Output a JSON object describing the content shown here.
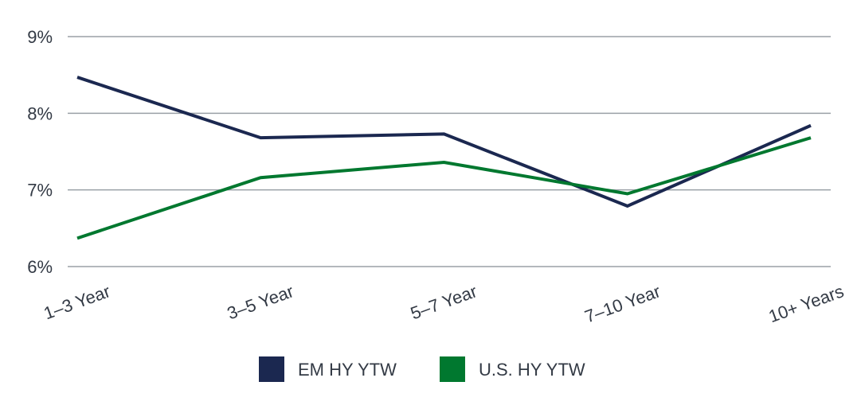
{
  "chart_data": {
    "type": "line",
    "categories": [
      "1–3 Year",
      "3–5 Year",
      "5–7 Year",
      "7–10 Year",
      "10+ Years"
    ],
    "series": [
      {
        "name": "EM HY YTW",
        "color": "#1b2850",
        "values": [
          8.47,
          7.68,
          7.73,
          6.79,
          7.84
        ]
      },
      {
        "name": "U.S. HY YTW",
        "color": "#00782f",
        "values": [
          6.37,
          7.16,
          7.36,
          6.95,
          7.68
        ]
      }
    ],
    "y_ticks": [
      {
        "value": 6,
        "label": "6%"
      },
      {
        "value": 7,
        "label": "7%"
      },
      {
        "value": 8,
        "label": "8%"
      },
      {
        "value": 9,
        "label": "9%"
      }
    ],
    "ylim": [
      6,
      9
    ],
    "grid": true,
    "grid_color": "#9aa0a6",
    "legend_position": "bottom"
  }
}
